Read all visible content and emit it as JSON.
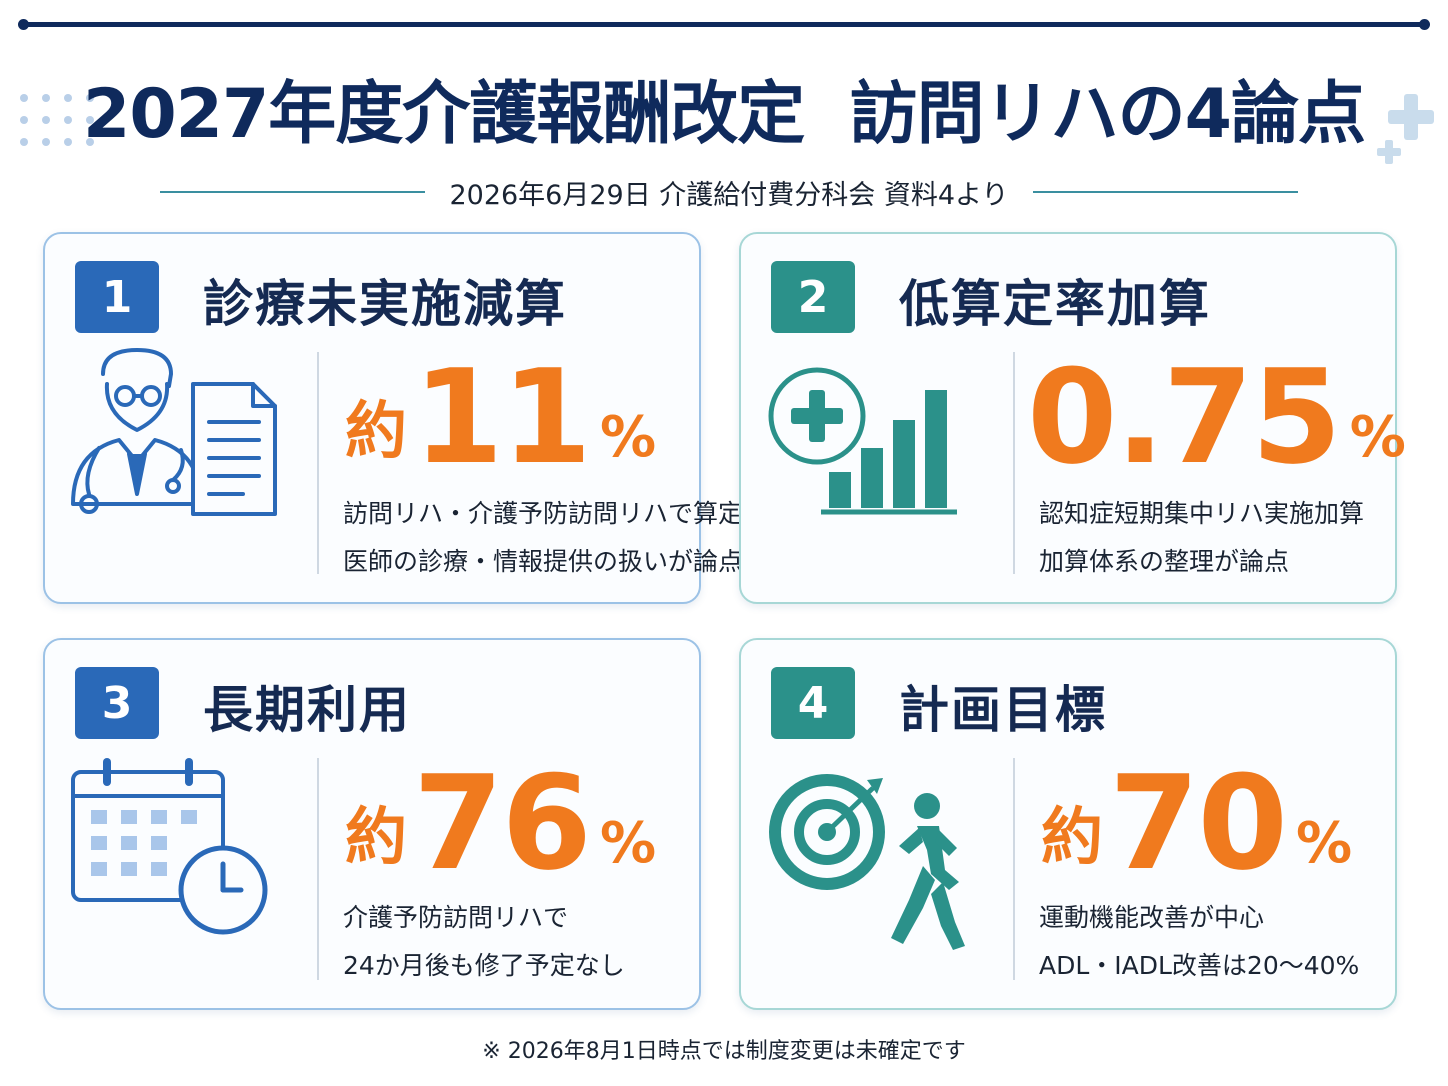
{
  "header": {
    "title": "2027年度介護報酬改定  訪問リハの4論点",
    "subtitle": "2026年6月29日 介護給付費分科会 資料4より"
  },
  "cards": [
    {
      "number": "1",
      "title": "診療未実施減算",
      "prefix": "約",
      "value": "11",
      "unit": "%",
      "lines": [
        "訪問リハ・介護予防訪問リハで算定",
        "医師の診療・情報提供の扱いが論点"
      ],
      "icon": "doctor-document-icon",
      "color": "#2a69b8"
    },
    {
      "number": "2",
      "title": "低算定率加算",
      "prefix": "",
      "value": "0.75",
      "unit": "%",
      "lines": [
        "認知症短期集中リハ実施加算",
        "加算体系の整理が論点"
      ],
      "icon": "medical-cross-bar-chart-icon",
      "color": "#2b918a"
    },
    {
      "number": "3",
      "title": "長期利用",
      "prefix": "約",
      "value": "76",
      "unit": "%",
      "lines": [
        "介護予防訪問リハで",
        "24か月後も修了予定なし"
      ],
      "icon": "calendar-clock-icon",
      "color": "#2a69b8"
    },
    {
      "number": "4",
      "title": "計画目標",
      "prefix": "約",
      "value": "70",
      "unit": "%",
      "lines": [
        "運動機能改善が中心",
        "ADL・IADL改善は20～40%"
      ],
      "icon": "target-walking-person-icon",
      "color": "#2b918a"
    }
  ],
  "accent_color": "#f07a1e",
  "footnote": "※ 2026年8月1日時点では制度変更は未確定です"
}
